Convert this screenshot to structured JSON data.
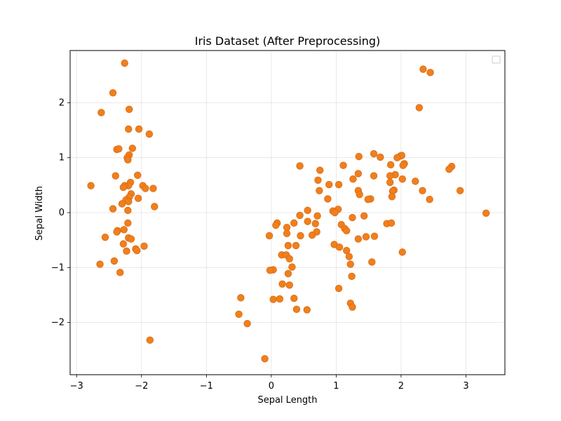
{
  "chart_data": {
    "type": "scatter",
    "title": "Iris Dataset (After Preprocessing)",
    "xlabel": "Sepal Length",
    "ylabel": "Sepal Width",
    "xlim": [
      -3.1,
      3.6
    ],
    "ylim": [
      -2.95,
      2.95
    ],
    "xticks": [
      -3,
      -2,
      -1,
      0,
      1,
      2,
      3
    ],
    "yticks": [
      -2,
      -1,
      0,
      1,
      2
    ],
    "grid": true,
    "legend_placement": "top-right",
    "marker_color": "#f07f1d",
    "series": [
      {
        "values": [
          [
            -2.26,
            2.72
          ],
          [
            -2.44,
            2.18
          ],
          [
            -2.62,
            1.82
          ],
          [
            -2.19,
            1.88
          ],
          [
            -2.2,
            1.52
          ],
          [
            -2.04,
            1.52
          ],
          [
            -1.88,
            1.43
          ],
          [
            -2.38,
            1.15
          ],
          [
            -2.35,
            1.16
          ],
          [
            -2.14,
            1.17
          ],
          [
            -2.19,
            1.05
          ],
          [
            -2.22,
            1.0
          ],
          [
            -2.21,
            0.96
          ],
          [
            -2.06,
            0.68
          ],
          [
            -2.4,
            0.67
          ],
          [
            -2.78,
            0.49
          ],
          [
            -2.17,
            0.55
          ],
          [
            -2.2,
            0.49
          ],
          [
            -2.26,
            0.49
          ],
          [
            -2.28,
            0.46
          ],
          [
            -1.98,
            0.49
          ],
          [
            -1.94,
            0.44
          ],
          [
            -1.82,
            0.44
          ],
          [
            -2.16,
            0.34
          ],
          [
            -2.19,
            0.28
          ],
          [
            -2.24,
            0.23
          ],
          [
            -2.05,
            0.26
          ],
          [
            -2.2,
            0.2
          ],
          [
            -2.3,
            0.16
          ],
          [
            -2.44,
            0.07
          ],
          [
            -2.21,
            0.04
          ],
          [
            -1.8,
            0.11
          ],
          [
            -2.21,
            -0.19
          ],
          [
            -2.27,
            -0.31
          ],
          [
            -2.37,
            -0.33
          ],
          [
            -2.38,
            -0.35
          ],
          [
            -2.56,
            -0.45
          ],
          [
            -2.2,
            -0.46
          ],
          [
            -2.16,
            -0.48
          ],
          [
            -2.28,
            -0.57
          ],
          [
            -1.96,
            -0.61
          ],
          [
            -2.09,
            -0.66
          ],
          [
            -2.07,
            -0.69
          ],
          [
            -2.23,
            -0.7
          ],
          [
            -2.42,
            -0.88
          ],
          [
            -2.64,
            -0.94
          ],
          [
            -2.33,
            -1.09
          ],
          [
            -1.87,
            -2.32
          ],
          [
            2.34,
            2.61
          ],
          [
            2.45,
            2.55
          ],
          [
            2.28,
            1.91
          ],
          [
            1.58,
            1.07
          ],
          [
            1.99,
            1.03
          ],
          [
            2.01,
            1.04
          ],
          [
            1.35,
            1.02
          ],
          [
            1.68,
            1.01
          ],
          [
            1.94,
            1.0
          ],
          [
            2.05,
            0.89
          ],
          [
            1.84,
            0.87
          ],
          [
            2.03,
            0.86
          ],
          [
            1.11,
            0.86
          ],
          [
            0.44,
            0.85
          ],
          [
            2.78,
            0.84
          ],
          [
            2.74,
            0.79
          ],
          [
            0.75,
            0.77
          ],
          [
            1.34,
            0.71
          ],
          [
            1.91,
            0.69
          ],
          [
            1.83,
            0.67
          ],
          [
            1.58,
            0.67
          ],
          [
            2.02,
            0.61
          ],
          [
            1.26,
            0.61
          ],
          [
            0.72,
            0.59
          ],
          [
            2.22,
            0.57
          ],
          [
            1.83,
            0.55
          ],
          [
            0.89,
            0.51
          ],
          [
            1.04,
            0.51
          ],
          [
            1.89,
            0.41
          ],
          [
            1.87,
            0.39
          ],
          [
            2.33,
            0.4
          ],
          [
            2.91,
            0.4
          ],
          [
            0.74,
            0.4
          ],
          [
            1.34,
            0.4
          ],
          [
            1.36,
            0.33
          ],
          [
            1.86,
            0.29
          ],
          [
            1.53,
            0.25
          ],
          [
            1.49,
            0.24
          ],
          [
            2.44,
            0.24
          ],
          [
            0.87,
            0.25
          ],
          [
            1.03,
            0.06
          ],
          [
            0.56,
            0.04
          ],
          [
            0.95,
            0.03
          ],
          [
            0.98,
            0.0
          ],
          [
            3.31,
            -0.01
          ],
          [
            0.71,
            -0.06
          ],
          [
            1.43,
            -0.06
          ],
          [
            0.44,
            -0.05
          ],
          [
            1.25,
            -0.09
          ],
          [
            0.56,
            -0.16
          ],
          [
            0.35,
            -0.19
          ],
          [
            1.78,
            -0.2
          ],
          [
            1.85,
            -0.19
          ],
          [
            0.09,
            -0.19
          ],
          [
            0.07,
            -0.23
          ],
          [
            0.68,
            -0.2
          ],
          [
            1.08,
            -0.22
          ],
          [
            0.24,
            -0.27
          ],
          [
            1.13,
            -0.29
          ],
          [
            1.16,
            -0.33
          ],
          [
            0.7,
            -0.35
          ],
          [
            0.24,
            -0.38
          ],
          [
            -0.03,
            -0.42
          ],
          [
            0.63,
            -0.41
          ],
          [
            0.45,
            -0.42
          ],
          [
            1.46,
            -0.44
          ],
          [
            1.59,
            -0.43
          ],
          [
            1.34,
            -0.48
          ],
          [
            0.97,
            -0.58
          ],
          [
            0.26,
            -0.6
          ],
          [
            0.38,
            -0.6
          ],
          [
            1.05,
            -0.63
          ],
          [
            1.16,
            -0.69
          ],
          [
            2.02,
            -0.72
          ],
          [
            0.16,
            -0.77
          ],
          [
            0.23,
            -0.77
          ],
          [
            0.28,
            -0.84
          ],
          [
            1.2,
            -0.8
          ],
          [
            1.55,
            -0.9
          ],
          [
            1.22,
            -0.94
          ],
          [
            0.32,
            -0.99
          ],
          [
            0.03,
            -1.04
          ],
          [
            -0.02,
            -1.05
          ],
          [
            0.26,
            -1.11
          ],
          [
            1.24,
            -1.16
          ],
          [
            0.17,
            -1.3
          ],
          [
            0.28,
            -1.32
          ],
          [
            1.04,
            -1.38
          ],
          [
            -0.47,
            -1.55
          ],
          [
            0.35,
            -1.56
          ],
          [
            0.03,
            -1.58
          ],
          [
            0.13,
            -1.57
          ],
          [
            1.22,
            -1.65
          ],
          [
            1.25,
            -1.72
          ],
          [
            0.39,
            -1.76
          ],
          [
            0.55,
            -1.77
          ],
          [
            -0.5,
            -1.85
          ],
          [
            -0.37,
            -2.02
          ],
          [
            -0.1,
            -2.66
          ]
        ]
      }
    ]
  }
}
